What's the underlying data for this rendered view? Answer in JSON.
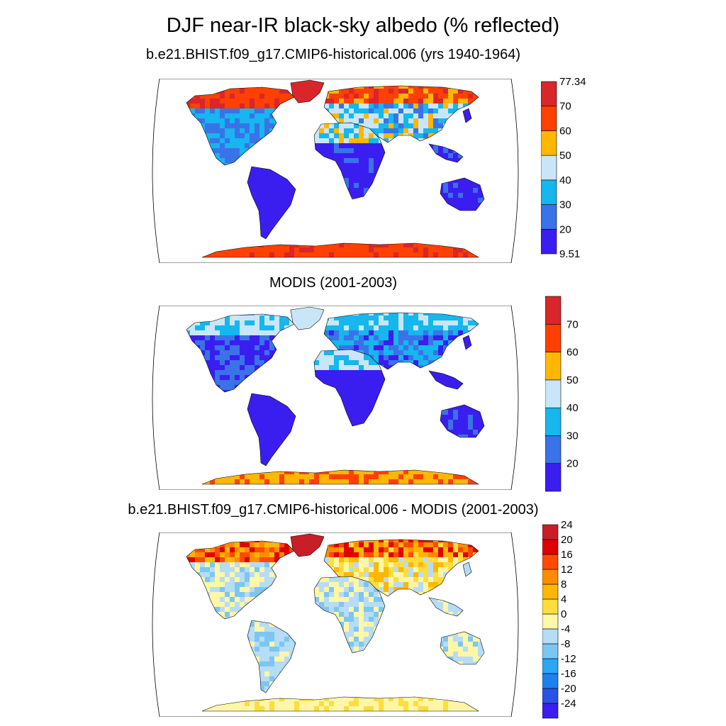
{
  "title": "DJF near-IR black-sky albedo (% reflected)",
  "panels": [
    {
      "id": "model",
      "title": "b.e21.BHIST.f09_g17.CMIP6-historical.006 (yrs 1940-1964)",
      "colorbar": {
        "colors": [
          "#3a1ef0",
          "#3a72e8",
          "#16b6ee",
          "#c8e6f8",
          "#ffb703",
          "#ff4000",
          "#d8262a"
        ],
        "labels": [
          "9.51",
          "20",
          "30",
          "40",
          "50",
          "60",
          "70",
          "77.34"
        ],
        "values": [
          9.51,
          20,
          30,
          40,
          50,
          60,
          70,
          77.34
        ]
      }
    },
    {
      "id": "obs",
      "title": "MODIS (2001-2003)",
      "colorbar": {
        "colors": [
          "#3a1ef0",
          "#3a72e8",
          "#16b6ee",
          "#c8e6f8",
          "#ffb703",
          "#ff4000",
          "#d8262a"
        ],
        "labels": [
          "20",
          "30",
          "40",
          "50",
          "60",
          "70"
        ],
        "values": [
          20,
          30,
          40,
          50,
          60,
          70
        ]
      }
    },
    {
      "id": "diff",
      "title": "b.e21.BHIST.f09_g17.CMIP6-historical.006 - MODIS (2001-2003)",
      "colorbar": {
        "colors": [
          "#3a1ef0",
          "#2a52e6",
          "#1e7ff0",
          "#2aa7f5",
          "#7cc6f2",
          "#b6dcf6",
          "#fff6a8",
          "#ffdd3c",
          "#ffb703",
          "#ff8c00",
          "#ff4a00",
          "#e00000",
          "#c81e28"
        ],
        "labels": [
          "-24",
          "-20",
          "-16",
          "-12",
          "-8",
          "-4",
          "0",
          "4",
          "8",
          "12",
          "16",
          "20",
          "24"
        ],
        "values": [
          -24,
          -20,
          -16,
          -12,
          -8,
          -4,
          0,
          4,
          8,
          12,
          16,
          20,
          24
        ]
      }
    }
  ]
}
